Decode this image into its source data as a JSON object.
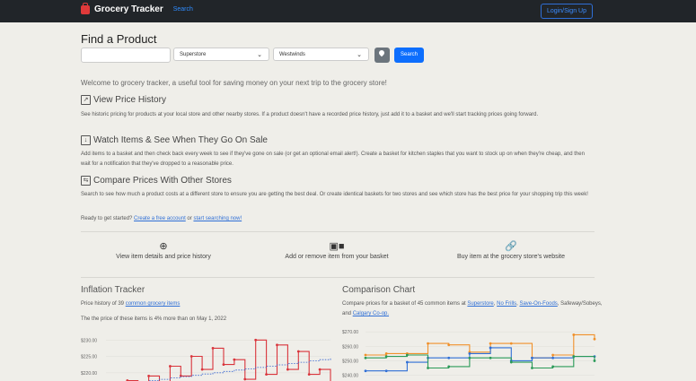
{
  "nav": {
    "brand": "Grocery Tracker",
    "search_link": "Search",
    "login": "Login/Sign Up"
  },
  "find": {
    "title": "Find a Product",
    "store_select": "Superstore",
    "location_select": "Westwinds",
    "search_button": "Search"
  },
  "welcome": "Welcome to grocery tracker, a useful tool for saving money on your next trip to the grocery store!",
  "sections": [
    {
      "title": "View Price History",
      "icon": "chart-line-icon",
      "text": "See historic pricing for products at your local store and other nearby stores. If a product doesn't have a recorded price history, just add it to a basket and we'll start tracking prices going forward."
    },
    {
      "title": "Watch Items & See When They Go On Sale",
      "icon": "arrow-down-box-icon",
      "text": "Add items to a basket and then check back every week to see if they've gone on sale (or get an optional email alert!). Create a basket for kitchen staples that you want to stock up on when they're cheap, and then wait for a notification that they've dropped to a reasonable price."
    },
    {
      "title": "Compare Prices With Other Stores",
      "icon": "compare-icon",
      "text": "Search to see how much a product costs at a different store to ensure you are getting the best deal. Or create identical baskets for two stores and see which store has the best price for your shopping trip this week!"
    }
  ],
  "ready": {
    "prefix": "Ready to get started?",
    "link1": "Create a free account",
    "mid": "or",
    "link2": "start searching now!"
  },
  "features": [
    {
      "icon": "zoom-in-icon",
      "label": "View item details and price history"
    },
    {
      "icon": "basket-icon",
      "label": "Add or remove item from your basket"
    },
    {
      "icon": "link-icon",
      "label": "Buy item at the grocery store's website"
    }
  ],
  "inflation": {
    "title": "Inflation Tracker",
    "desc_prefix": "Price history of 39",
    "desc_link": "common grocery items",
    "note": "The the price of these items is 4% more than on May 1, 2022"
  },
  "comparison": {
    "title": "Comparison Chart",
    "desc_prefix": "Compare prices for a basket of 45 common items at",
    "stores": [
      "Superstore",
      "No Frills",
      "Save-On-Foods"
    ],
    "store_plain": "Safeway/Sobeys, and",
    "store_last": "Calgary Co-op."
  },
  "chart_data": [
    {
      "type": "line",
      "title": "Inflation Tracker",
      "ylim": [
        215,
        232
      ],
      "y_ticks": [
        "$230.00",
        "$225.00",
        "$220.00",
        "$215.00"
      ],
      "series": [
        {
          "name": "price",
          "color": "#d9343b",
          "values": [
            215,
            215,
            217.6,
            215,
            219,
            215,
            222,
            219,
            225,
            221,
            227.5,
            222.5,
            224,
            218,
            230,
            219.5,
            228.5,
            221,
            226.5,
            219.5,
            221,
            216
          ]
        },
        {
          "name": "trend",
          "color": "#3060d0",
          "values": [
            216,
            216.4,
            216.8,
            217.2,
            217.6,
            218,
            218.4,
            218.8,
            219.2,
            219.6,
            220,
            220.4,
            220.8,
            221.2,
            221.6,
            222,
            222.4,
            222.8,
            223.2,
            223.6,
            224,
            224.4
          ]
        }
      ]
    },
    {
      "type": "line",
      "title": "Comparison Chart",
      "ylim": [
        236,
        272
      ],
      "y_ticks": [
        "$270.00",
        "$260.00",
        "$250.00",
        "$240.00"
      ],
      "series": [
        {
          "name": "orange",
          "color": "#f0902a",
          "values": [
            254,
            255,
            255,
            262,
            261,
            256,
            262,
            262,
            252,
            254,
            268,
            265
          ]
        },
        {
          "name": "blue",
          "color": "#2f6fd6",
          "values": [
            243,
            243,
            249,
            252,
            252,
            255,
            259,
            250,
            252,
            252,
            253,
            253
          ]
        },
        {
          "name": "green",
          "color": "#2a9a58",
          "values": [
            252,
            253,
            254,
            245,
            246,
            252,
            252,
            249,
            245,
            246,
            253,
            250
          ]
        }
      ]
    }
  ]
}
